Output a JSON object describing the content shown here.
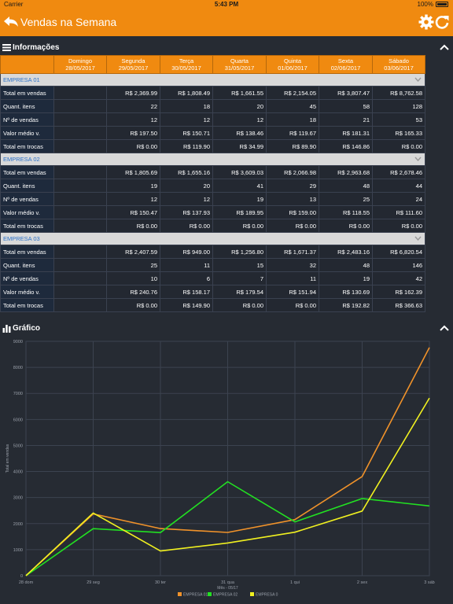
{
  "status": {
    "carrier": "Carrier",
    "time": "5:43 PM",
    "battery": "100%"
  },
  "nav": {
    "title": "Vendas na Semana",
    "back_icon": "back-arrow-icon",
    "settings_icon": "gear-icon",
    "refresh_icon": "refresh-icon"
  },
  "colors": {
    "accent": "#f08a10",
    "background": "#262b33",
    "link": "#2d72c8"
  },
  "info": {
    "title": "Informações",
    "columns": [
      {
        "day": "Domingo",
        "date": "28/05/2017"
      },
      {
        "day": "Segunda",
        "date": "29/05/2017"
      },
      {
        "day": "Terça",
        "date": "30/05/2017"
      },
      {
        "day": "Quarta",
        "date": "31/05/2017"
      },
      {
        "day": "Quinta",
        "date": "01/06/2017"
      },
      {
        "day": "Sexta",
        "date": "02/06/2017"
      },
      {
        "day": "Sábado",
        "date": "03/06/2017"
      }
    ],
    "groups": [
      {
        "name": "EMPRESA 01",
        "rows": [
          {
            "label": "Total em vendas",
            "values": [
              "",
              "R$ 2,369.99",
              "R$ 1,808.49",
              "R$ 1,661.55",
              "R$ 2,154.05",
              "R$ 3,807.47",
              "R$ 8,762.58"
            ]
          },
          {
            "label": "Quant. itens",
            "values": [
              "",
              "22",
              "18",
              "20",
              "45",
              "58",
              "128"
            ]
          },
          {
            "label": "Nº de vendas",
            "values": [
              "",
              "12",
              "12",
              "12",
              "18",
              "21",
              "53"
            ]
          },
          {
            "label": "Valor médio v.",
            "values": [
              "",
              "R$ 197.50",
              "R$ 150.71",
              "R$ 138.46",
              "R$ 119.67",
              "R$ 181.31",
              "R$ 165.33"
            ]
          },
          {
            "label": "Total em trocas",
            "values": [
              "",
              "R$ 0.00",
              "R$ 119.90",
              "R$ 34.99",
              "R$ 89.90",
              "R$ 146.86",
              "R$ 0.00"
            ]
          }
        ]
      },
      {
        "name": "EMPRESA 02",
        "rows": [
          {
            "label": "Total em vendas",
            "values": [
              "",
              "R$ 1,805.69",
              "R$ 1,655.16",
              "R$ 3,609.03",
              "R$ 2,066.98",
              "R$ 2,963.68",
              "R$ 2,678.46"
            ]
          },
          {
            "label": "Quant. itens",
            "values": [
              "",
              "19",
              "20",
              "41",
              "29",
              "48",
              "44"
            ]
          },
          {
            "label": "Nº de vendas",
            "values": [
              "",
              "12",
              "12",
              "19",
              "13",
              "25",
              "24"
            ]
          },
          {
            "label": "Valor médio v.",
            "values": [
              "",
              "R$ 150.47",
              "R$ 137.93",
              "R$ 189.95",
              "R$ 159.00",
              "R$ 118.55",
              "R$ 111.60"
            ]
          },
          {
            "label": "Total em trocas",
            "values": [
              "",
              "R$ 0.00",
              "R$ 0.00",
              "R$ 0.00",
              "R$ 0.00",
              "R$ 0.00",
              "R$ 0.00"
            ]
          }
        ]
      },
      {
        "name": "EMPRESA 03",
        "rows": [
          {
            "label": "Total em vendas",
            "values": [
              "",
              "R$ 2,407.59",
              "R$ 949.00",
              "R$ 1,256.80",
              "R$ 1,671.37",
              "R$ 2,483.16",
              "R$ 6,820.54"
            ]
          },
          {
            "label": "Quant. itens",
            "values": [
              "",
              "25",
              "11",
              "15",
              "32",
              "48",
              "146"
            ]
          },
          {
            "label": "Nº de vendas",
            "values": [
              "",
              "10",
              "6",
              "7",
              "11",
              "19",
              "42"
            ]
          },
          {
            "label": "Valor médio v.",
            "values": [
              "",
              "R$ 240.76",
              "R$ 158.17",
              "R$ 179.54",
              "R$ 151.94",
              "R$ 130.69",
              "R$ 162.39"
            ]
          },
          {
            "label": "Total em trocas",
            "values": [
              "",
              "R$ 0.00",
              "R$ 149.90",
              "R$ 0.00",
              "R$ 0.00",
              "R$ 192.82",
              "R$ 366.63"
            ]
          }
        ]
      }
    ]
  },
  "chart_section": {
    "title": "Gráfico"
  },
  "chart_data": {
    "type": "line",
    "categories": [
      "28 dom",
      "29 seg",
      "30 ter",
      "31 qua",
      "1 qui",
      "2 sex",
      "3 sáb"
    ],
    "xlabel": "Mês - 05/17",
    "ylabel": "Total em vendas",
    "ylim": [
      0,
      9000
    ],
    "yticks": [
      "0",
      "1000",
      "2000",
      "3000",
      "4000",
      "5000",
      "6000",
      "7000",
      "8000",
      "9000"
    ],
    "grid": true,
    "legend_position": "bottom",
    "series": [
      {
        "name": "EMPRESA 01",
        "color": "#f0922a",
        "values": [
          0,
          2369.99,
          1808.49,
          1661.55,
          2154.05,
          3807.47,
          8762.58
        ]
      },
      {
        "name": "EMPRESA 02",
        "color": "#22e022",
        "values": [
          0,
          1805.69,
          1655.16,
          3609.03,
          2066.98,
          2963.68,
          2678.46
        ]
      },
      {
        "name": "EMPRESA 0",
        "color": "#f0f020",
        "values": [
          0,
          2407.59,
          949.0,
          1256.8,
          1671.37,
          2483.16,
          6820.54
        ]
      }
    ]
  }
}
